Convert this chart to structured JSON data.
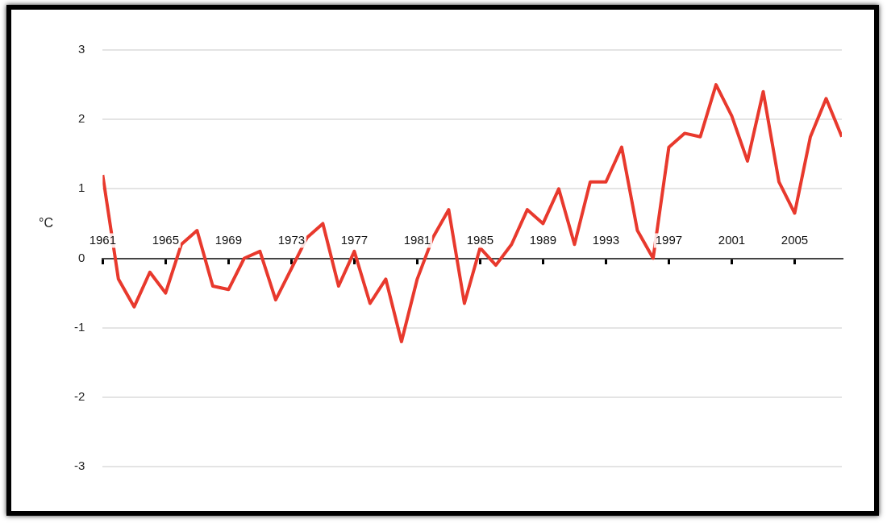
{
  "chart_data": {
    "type": "line",
    "ylabel": "°C",
    "x": [
      1961,
      1962,
      1963,
      1964,
      1965,
      1966,
      1967,
      1968,
      1969,
      1970,
      1971,
      1972,
      1973,
      1974,
      1975,
      1976,
      1977,
      1978,
      1979,
      1980,
      1981,
      1982,
      1983,
      1984,
      1985,
      1986,
      1987,
      1988,
      1989,
      1990,
      1991,
      1992,
      1993,
      1994,
      1995,
      1996,
      1997,
      1998,
      1999,
      2000,
      2001,
      2002,
      2003,
      2004,
      2005,
      2006,
      2007,
      2008
    ],
    "series": [
      {
        "color": "#e8392d",
        "values": [
          1.2,
          -0.3,
          -0.7,
          -0.2,
          -0.5,
          0.2,
          0.4,
          -0.4,
          -0.45,
          0.0,
          0.1,
          -0.6,
          -0.15,
          0.3,
          0.5,
          -0.4,
          0.1,
          -0.65,
          -0.3,
          -1.2,
          -0.3,
          0.3,
          0.7,
          -0.65,
          0.15,
          -0.1,
          0.2,
          0.7,
          0.5,
          1.0,
          0.2,
          1.1,
          1.1,
          1.6,
          0.4,
          0.0,
          1.6,
          1.8,
          1.75,
          2.5,
          2.05,
          1.4,
          2.4,
          1.1,
          0.65,
          1.75,
          2.3,
          1.75
        ]
      }
    ],
    "xlim": [
      1961,
      2008
    ],
    "xticks": [
      1961,
      1965,
      1969,
      1973,
      1977,
      1981,
      1985,
      1989,
      1993,
      1997,
      2001,
      2005
    ],
    "ylim": [
      -3,
      3
    ],
    "yticks": [
      -3,
      -2,
      -1,
      0,
      1,
      2,
      3
    ],
    "grid": "y",
    "legend": false,
    "marker": "none",
    "line_style": "solid"
  }
}
